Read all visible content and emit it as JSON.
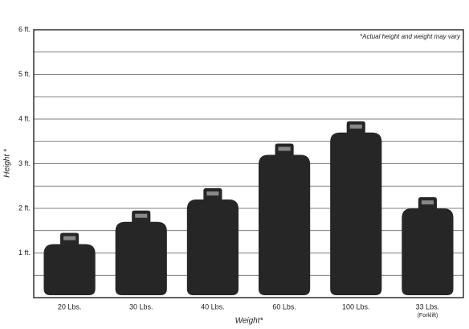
{
  "chart_data": {
    "type": "tank",
    "annotation": "*Actual height and weight may vary",
    "y_label": "Height *",
    "x_label": "Weight*",
    "categories": [
      "20 Lbs.",
      "30 Lbs.",
      "40 Lbs.",
      "60 Lbs.",
      "100 Lbs.",
      "33 Lbs."
    ],
    "category_notes": [
      null,
      null,
      null,
      null,
      null,
      "(Forklift)"
    ],
    "values": [
      1.45,
      1.95,
      2.45,
      3.45,
      3.95,
      2.25
    ],
    "color": "#262626",
    "ylim": [
      0,
      6
    ],
    "yticks": [
      {
        "value": 1,
        "label": "1 ft."
      },
      {
        "value": 2,
        "label": "2 ft."
      },
      {
        "value": 3,
        "label": "3 ft."
      },
      {
        "value": 4,
        "label": "4 ft."
      },
      {
        "value": 5,
        "label": "5 ft."
      },
      {
        "value": 6,
        "label": "6 ft."
      }
    ],
    "yminorticks": [
      0.5,
      1.5,
      2.5,
      3.5,
      4.5,
      5.5
    ],
    "grid": true
  }
}
